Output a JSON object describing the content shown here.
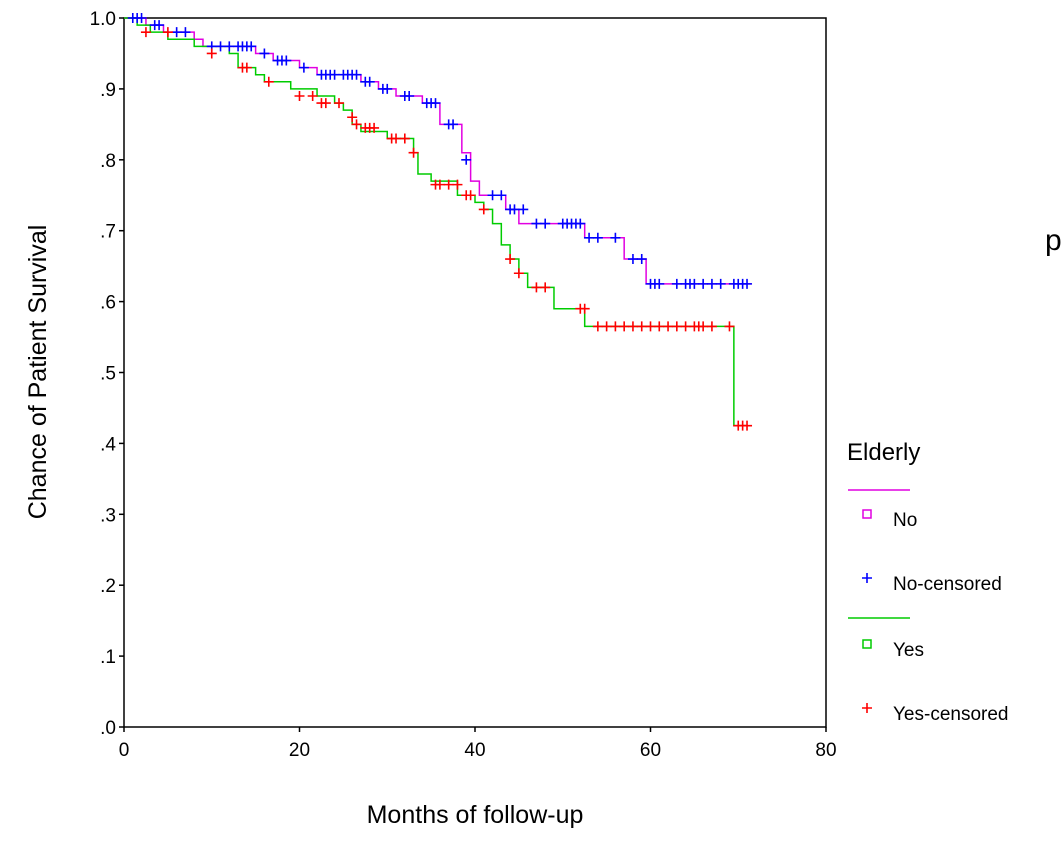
{
  "chart_data": {
    "type": "line",
    "subtype": "kaplan-meier survival",
    "xlabel": "Months of follow-up",
    "ylabel": "Chance of Patient Survival",
    "xlim": [
      0,
      80
    ],
    "ylim": [
      0,
      1
    ],
    "xticks": [
      "0",
      "20",
      "40",
      "60",
      "80"
    ],
    "yticks": [
      ".0",
      ".1",
      ".2",
      ".3",
      ".4",
      ".5",
      ".6",
      ".7",
      ".8",
      ".9",
      "1.0"
    ],
    "grid": false,
    "annotation": "p",
    "legend": {
      "title": "Elderly",
      "placement": "right",
      "entries": [
        {
          "label": "No",
          "kind": "line",
          "color": "#e100e1"
        },
        {
          "label": "No-censored",
          "kind": "censor",
          "color": "#0000ff"
        },
        {
          "label": "Yes",
          "kind": "line",
          "color": "#00cc00"
        },
        {
          "label": "Yes-censored",
          "kind": "censor",
          "color": "#ff0000"
        }
      ]
    },
    "series": [
      {
        "name": "No",
        "color": "#e100e1",
        "censor_color": "#0000ff",
        "steps": [
          [
            0,
            1.0
          ],
          [
            2.5,
            0.99
          ],
          [
            4.5,
            0.98
          ],
          [
            8,
            0.97
          ],
          [
            9,
            0.96
          ],
          [
            15,
            0.95
          ],
          [
            17,
            0.94
          ],
          [
            20,
            0.93
          ],
          [
            22,
            0.92
          ],
          [
            27,
            0.91
          ],
          [
            29,
            0.9
          ],
          [
            31,
            0.89
          ],
          [
            34,
            0.88
          ],
          [
            36,
            0.85
          ],
          [
            38.5,
            0.81
          ],
          [
            39.5,
            0.77
          ],
          [
            40.5,
            0.75
          ],
          [
            43.5,
            0.73
          ],
          [
            45,
            0.71
          ],
          [
            52.5,
            0.69
          ],
          [
            57,
            0.66
          ],
          [
            59.5,
            0.625
          ],
          [
            71.5,
            0.625
          ]
        ],
        "censored": [
          [
            1,
            1.0
          ],
          [
            1.5,
            1.0
          ],
          [
            2,
            1.0
          ],
          [
            3.5,
            0.99
          ],
          [
            4,
            0.99
          ],
          [
            6,
            0.98
          ],
          [
            7,
            0.98
          ],
          [
            10,
            0.96
          ],
          [
            11,
            0.96
          ],
          [
            12,
            0.96
          ],
          [
            13,
            0.96
          ],
          [
            13.5,
            0.96
          ],
          [
            14,
            0.96
          ],
          [
            14.5,
            0.96
          ],
          [
            16,
            0.95
          ],
          [
            17.5,
            0.94
          ],
          [
            18,
            0.94
          ],
          [
            18.5,
            0.94
          ],
          [
            20.5,
            0.93
          ],
          [
            22.5,
            0.92
          ],
          [
            23,
            0.92
          ],
          [
            23.5,
            0.92
          ],
          [
            24,
            0.92
          ],
          [
            25,
            0.92
          ],
          [
            25.5,
            0.92
          ],
          [
            26,
            0.92
          ],
          [
            26.5,
            0.92
          ],
          [
            27.5,
            0.91
          ],
          [
            28,
            0.91
          ],
          [
            29.5,
            0.9
          ],
          [
            30,
            0.9
          ],
          [
            32,
            0.89
          ],
          [
            32.5,
            0.89
          ],
          [
            34.5,
            0.88
          ],
          [
            35,
            0.88
          ],
          [
            35.5,
            0.88
          ],
          [
            37,
            0.85
          ],
          [
            37.5,
            0.85
          ],
          [
            39,
            0.8
          ],
          [
            42,
            0.75
          ],
          [
            43,
            0.75
          ],
          [
            44,
            0.73
          ],
          [
            44.5,
            0.73
          ],
          [
            45.5,
            0.73
          ],
          [
            47,
            0.71
          ],
          [
            48,
            0.71
          ],
          [
            50,
            0.71
          ],
          [
            50.5,
            0.71
          ],
          [
            51,
            0.71
          ],
          [
            51.5,
            0.71
          ],
          [
            52,
            0.71
          ],
          [
            53,
            0.69
          ],
          [
            54,
            0.69
          ],
          [
            56,
            0.69
          ],
          [
            58,
            0.66
          ],
          [
            59,
            0.66
          ],
          [
            60,
            0.625
          ],
          [
            60.5,
            0.625
          ],
          [
            61,
            0.625
          ],
          [
            63,
            0.625
          ],
          [
            64,
            0.625
          ],
          [
            64.5,
            0.625
          ],
          [
            65,
            0.625
          ],
          [
            66,
            0.625
          ],
          [
            67,
            0.625
          ],
          [
            68,
            0.625
          ],
          [
            69.5,
            0.625
          ],
          [
            70,
            0.625
          ],
          [
            70.5,
            0.625
          ],
          [
            71,
            0.625
          ]
        ]
      },
      {
        "name": "Yes",
        "color": "#00cc00",
        "censor_color": "#ff0000",
        "steps": [
          [
            0,
            1.0
          ],
          [
            1.5,
            0.99
          ],
          [
            3,
            0.98
          ],
          [
            5,
            0.97
          ],
          [
            8,
            0.96
          ],
          [
            12,
            0.95
          ],
          [
            13,
            0.93
          ],
          [
            15,
            0.92
          ],
          [
            16,
            0.91
          ],
          [
            19,
            0.9
          ],
          [
            22,
            0.89
          ],
          [
            24,
            0.88
          ],
          [
            25,
            0.87
          ],
          [
            26,
            0.85
          ],
          [
            27,
            0.84
          ],
          [
            30,
            0.83
          ],
          [
            33,
            0.81
          ],
          [
            33.5,
            0.78
          ],
          [
            35,
            0.77
          ],
          [
            38,
            0.75
          ],
          [
            40,
            0.74
          ],
          [
            41,
            0.73
          ],
          [
            42,
            0.71
          ],
          [
            43,
            0.68
          ],
          [
            44,
            0.66
          ],
          [
            45,
            0.64
          ],
          [
            46,
            0.62
          ],
          [
            49,
            0.59
          ],
          [
            52.5,
            0.565
          ],
          [
            69.5,
            0.565
          ],
          [
            69.5,
            0.425
          ],
          [
            71,
            0.425
          ]
        ],
        "censored": [
          [
            2.5,
            0.98
          ],
          [
            5,
            0.98
          ],
          [
            10,
            0.95
          ],
          [
            13.5,
            0.93
          ],
          [
            14,
            0.93
          ],
          [
            16.5,
            0.91
          ],
          [
            20,
            0.89
          ],
          [
            21.5,
            0.89
          ],
          [
            22.5,
            0.88
          ],
          [
            23,
            0.88
          ],
          [
            24.5,
            0.88
          ],
          [
            26,
            0.86
          ],
          [
            26.5,
            0.85
          ],
          [
            27.5,
            0.845
          ],
          [
            28,
            0.845
          ],
          [
            28.5,
            0.845
          ],
          [
            30.5,
            0.83
          ],
          [
            31,
            0.83
          ],
          [
            32,
            0.83
          ],
          [
            33,
            0.81
          ],
          [
            35.5,
            0.765
          ],
          [
            36,
            0.765
          ],
          [
            37,
            0.765
          ],
          [
            38,
            0.765
          ],
          [
            39,
            0.75
          ],
          [
            39.5,
            0.75
          ],
          [
            41,
            0.73
          ],
          [
            44,
            0.66
          ],
          [
            45,
            0.64
          ],
          [
            47,
            0.62
          ],
          [
            48,
            0.62
          ],
          [
            52,
            0.59
          ],
          [
            52.5,
            0.59
          ],
          [
            54,
            0.565
          ],
          [
            55,
            0.565
          ],
          [
            56,
            0.565
          ],
          [
            57,
            0.565
          ],
          [
            58,
            0.565
          ],
          [
            59,
            0.565
          ],
          [
            60,
            0.565
          ],
          [
            61,
            0.565
          ],
          [
            62,
            0.565
          ],
          [
            63,
            0.565
          ],
          [
            64,
            0.565
          ],
          [
            65,
            0.565
          ],
          [
            65.5,
            0.565
          ],
          [
            66,
            0.565
          ],
          [
            67,
            0.565
          ],
          [
            69,
            0.565
          ],
          [
            70,
            0.425
          ],
          [
            70.5,
            0.425
          ],
          [
            71,
            0.425
          ]
        ]
      }
    ]
  }
}
